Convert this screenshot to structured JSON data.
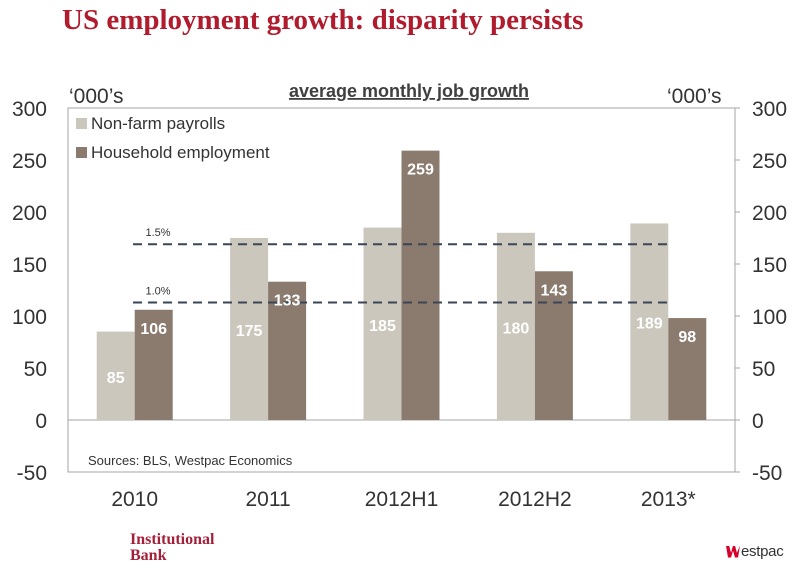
{
  "page": {
    "title": "US employment growth: disparity persists",
    "footer_left_line1": "Institutional",
    "footer_left_line2": "Bank",
    "footer_right": "estpac"
  },
  "colors": {
    "title": "#b01c2e",
    "nonfarm": "#cbc7bd",
    "household": "#8b7b6e",
    "dashed": "#3a4656"
  },
  "chart_data": {
    "type": "bar",
    "title": "average monthly job growth",
    "ylabel_left": "‘000’s",
    "ylabel_right": "‘000’s",
    "categories": [
      "2010",
      "2011",
      "2012H1",
      "2012H2",
      "2013*"
    ],
    "series": [
      {
        "name": "Non-farm payrolls",
        "values": [
          85,
          175,
          185,
          180,
          189
        ]
      },
      {
        "name": "Household employment",
        "values": [
          106,
          133,
          259,
          143,
          98
        ]
      }
    ],
    "ylim": [
      -50,
      300
    ],
    "yticks": [
      -50,
      0,
      50,
      100,
      150,
      200,
      250,
      300
    ],
    "reference_lines": [
      {
        "label": "1.5%",
        "value": 169
      },
      {
        "label": "1.0%",
        "value": 113
      }
    ],
    "source": "Sources: BLS, Westpac Economics",
    "legend_position": "top-left"
  }
}
